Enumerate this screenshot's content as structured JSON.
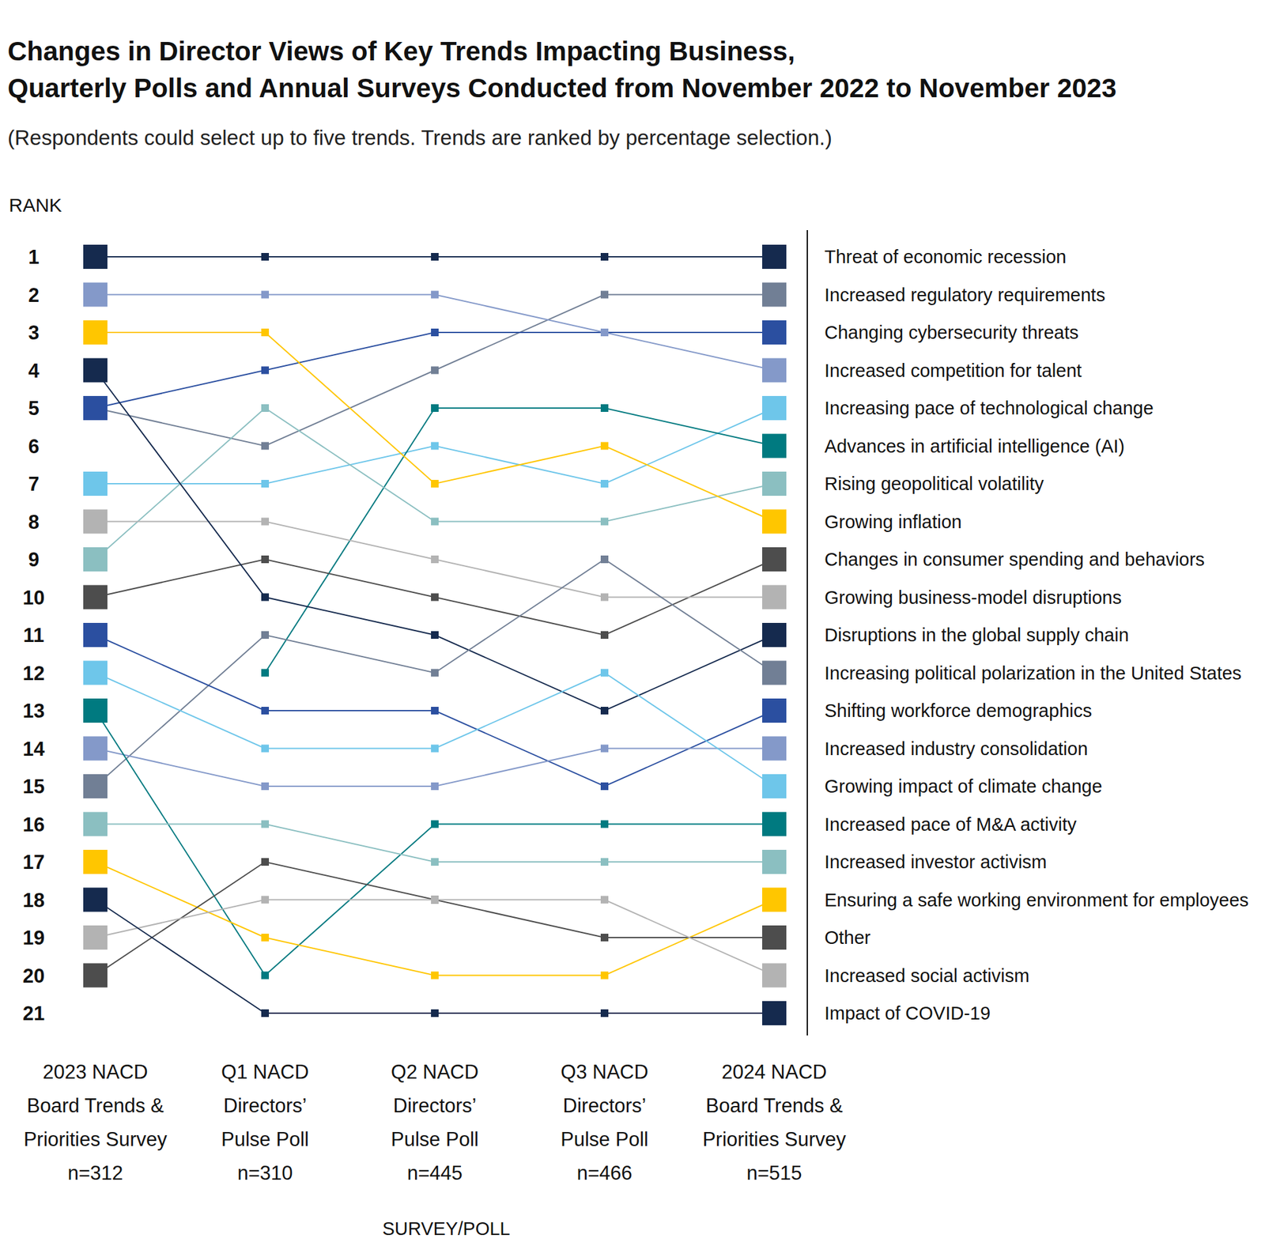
{
  "chart_data": {
    "type": "line",
    "title": "Changes in Director Views of Key Trends Impacting Business,\nQuarterly Polls and Annual Surveys Conducted from November 2022 to November 2023",
    "subtitle": "(Respondents could select up to five trends. Trends are ranked by percentage selection.)",
    "x_label": "SURVEY/POLL",
    "y_label": "RANK",
    "categories": [
      "2023 NACD\nBoard Trends &\nPriorities Survey\nn=312",
      "Q1 NACD\nDirectors’\nPulse Poll\nn=310",
      "Q2 NACD\nDirectors’\nPulse Poll\nn=445",
      "Q3 NACD\nDirectors’\nPulse Poll\nn=466",
      "2024 NACD\nBoard Trends &\nPriorities Survey\nn=515"
    ],
    "ylim": [
      21,
      1
    ],
    "yticks": [
      1,
      2,
      3,
      4,
      5,
      6,
      7,
      8,
      9,
      10,
      11,
      12,
      13,
      14,
      15,
      16,
      17,
      18,
      19,
      20,
      21
    ],
    "marker": "square",
    "series": [
      {
        "name": "Threat of economic recession",
        "color": "#152a4e",
        "values": [
          1,
          1,
          1,
          1,
          1
        ]
      },
      {
        "name": "Increased regulatory requirements",
        "color": "#717f95",
        "values": [
          5,
          6,
          4,
          2,
          2
        ]
      },
      {
        "name": "Changing cybersecurity threats",
        "color": "#2b4fa0",
        "values": [
          5,
          4,
          3,
          3,
          3
        ]
      },
      {
        "name": "Increased competition for talent",
        "color": "#8499c9",
        "values": [
          2,
          2,
          2,
          3,
          4
        ]
      },
      {
        "name": "Increasing pace of technological change",
        "color": "#6ec6ea",
        "values": [
          7,
          7,
          6,
          7,
          5
        ]
      },
      {
        "name": "Advances in artificial intelligence (AI)",
        "color": "#007a80",
        "values": [
          null,
          12,
          5,
          5,
          6
        ]
      },
      {
        "name": "Rising geopolitical volatility",
        "color": "#8bbfc1",
        "values": [
          9,
          5,
          8,
          8,
          7
        ]
      },
      {
        "name": "Growing inflation",
        "color": "#ffc600",
        "values": [
          3,
          3,
          7,
          6,
          8
        ]
      },
      {
        "name": "Changes in consumer spending and behaviors",
        "color": "#4d4d4d",
        "values": [
          10,
          9,
          10,
          11,
          9
        ]
      },
      {
        "name": "Growing business-model disruptions",
        "color": "#b3b3b3",
        "values": [
          8,
          8,
          9,
          10,
          10
        ]
      },
      {
        "name": "Disruptions in the global supply chain",
        "color": "#152a4e",
        "values": [
          4,
          10,
          11,
          13,
          11
        ]
      },
      {
        "name": "Increasing political polarization in the United States",
        "color": "#717f95",
        "values": [
          15,
          11,
          12,
          9,
          12
        ]
      },
      {
        "name": "Shifting workforce demographics",
        "color": "#2b4fa0",
        "values": [
          11,
          13,
          13,
          15,
          13
        ]
      },
      {
        "name": "Increased industry consolidation",
        "color": "#8499c9",
        "values": [
          14,
          15,
          15,
          14,
          14
        ]
      },
      {
        "name": "Growing impact of climate change",
        "color": "#6ec6ea",
        "values": [
          12,
          14,
          14,
          12,
          15
        ]
      },
      {
        "name": "Increased pace of M&A activity",
        "color": "#007a80",
        "values": [
          13,
          20,
          16,
          16,
          16
        ]
      },
      {
        "name": "Increased investor activism",
        "color": "#8bbfc1",
        "values": [
          16,
          16,
          17,
          17,
          17
        ]
      },
      {
        "name": "Ensuring a safe working environment for employees",
        "color": "#ffc600",
        "values": [
          17,
          19,
          20,
          20,
          18
        ]
      },
      {
        "name": "Other",
        "color": "#4d4d4d",
        "values": [
          20,
          17,
          18,
          19,
          19
        ]
      },
      {
        "name": "Increased social activism",
        "color": "#b3b3b3",
        "values": [
          19,
          18,
          18,
          18,
          20
        ]
      },
      {
        "name": "Impact of COVID-19",
        "color": "#152a4e",
        "values": [
          18,
          21,
          21,
          21,
          21
        ]
      }
    ]
  }
}
